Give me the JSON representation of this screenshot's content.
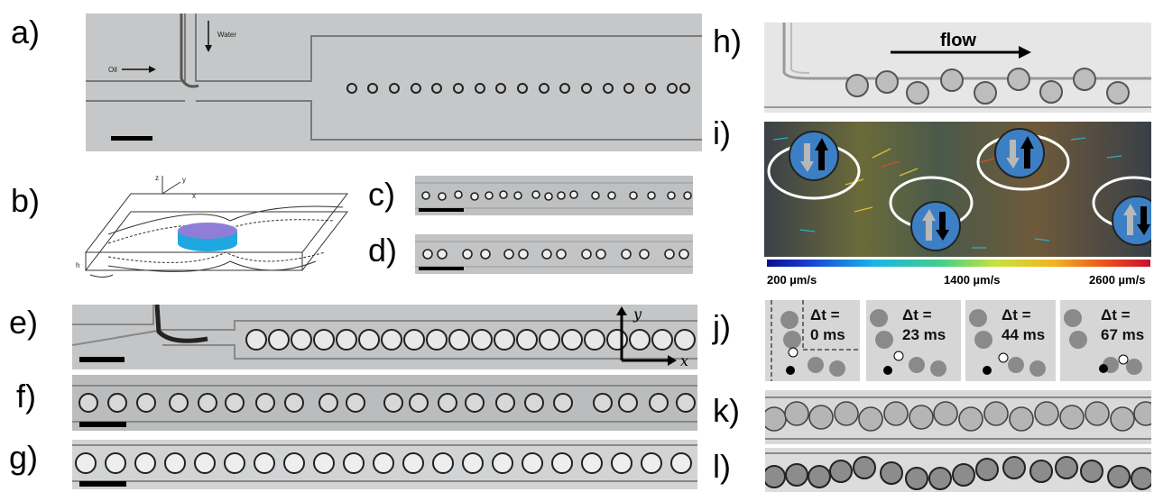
{
  "labels": {
    "a": "a)",
    "b": "b)",
    "c": "c)",
    "d": "d)",
    "e": "e)",
    "f": "f)",
    "g": "g)",
    "h": "h)",
    "i": "i)",
    "j": "j)",
    "k": "k)",
    "l": "l)"
  },
  "panel_a": {
    "water": "Water",
    "oil": "Oil"
  },
  "panel_b": {
    "z": "z",
    "y": "y",
    "x": "x",
    "h": "h"
  },
  "panel_e": {
    "y": "y",
    "x": "x"
  },
  "panel_h": {
    "flow": "flow"
  },
  "colorbar": {
    "min": "200 µm/s",
    "mid": "1400 µm/s",
    "max": "2600 µm/s"
  },
  "panel_j": {
    "frames": [
      {
        "line1": "Δt =",
        "line2": "0 ms"
      },
      {
        "line1": "Δt =",
        "line2": "23 ms"
      },
      {
        "line1": "Δt =",
        "line2": "44 ms"
      },
      {
        "line1": "Δt =",
        "line2": "67 ms"
      }
    ]
  }
}
